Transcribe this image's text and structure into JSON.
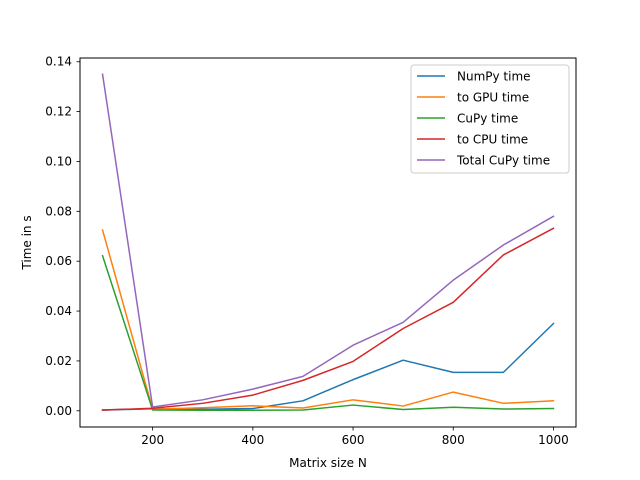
{
  "chart_data": {
    "type": "line",
    "title": "",
    "xlabel": "Matrix size N",
    "ylabel": "Time in s",
    "xlim": [
      55,
      1045
    ],
    "ylim": [
      -0.0065,
      0.1415
    ],
    "x_ticks": [
      200,
      400,
      600,
      800,
      1000
    ],
    "y_ticks": [
      0.0,
      0.02,
      0.04,
      0.06,
      0.08,
      0.1,
      0.12,
      0.14
    ],
    "y_tick_labels": [
      "0.00",
      "0.02",
      "0.04",
      "0.06",
      "0.08",
      "0.10",
      "0.12",
      "0.14"
    ],
    "grid": false,
    "legend_position": "top-right",
    "x": [
      100,
      200,
      300,
      400,
      500,
      600,
      700,
      800,
      900,
      1000
    ],
    "series": [
      {
        "name": "NumPy time",
        "color": "#1f77b4",
        "values": [
          0.0003,
          0.0008,
          0.0006,
          0.0009,
          0.004,
          0.0125,
          0.0203,
          0.0154,
          0.0154,
          0.035
        ]
      },
      {
        "name": "to GPU time",
        "color": "#ff7f0e",
        "values": [
          0.0725,
          0.0006,
          0.0012,
          0.002,
          0.0011,
          0.0044,
          0.0019,
          0.0075,
          0.003,
          0.004
        ]
      },
      {
        "name": "CuPy time",
        "color": "#2ca02c",
        "values": [
          0.0622,
          0.0003,
          0.0002,
          0.0002,
          0.0003,
          0.0023,
          0.0005,
          0.0014,
          0.0007,
          0.0009
        ]
      },
      {
        "name": "to CPU time",
        "color": "#d62728",
        "values": [
          0.0003,
          0.001,
          0.003,
          0.0063,
          0.0122,
          0.0198,
          0.033,
          0.0435,
          0.0625,
          0.0732
        ]
      },
      {
        "name": "Total CuPy time",
        "color": "#9467bd",
        "values": [
          0.135,
          0.0015,
          0.0044,
          0.0087,
          0.0138,
          0.0263,
          0.0355,
          0.0524,
          0.0665,
          0.078
        ]
      }
    ]
  }
}
